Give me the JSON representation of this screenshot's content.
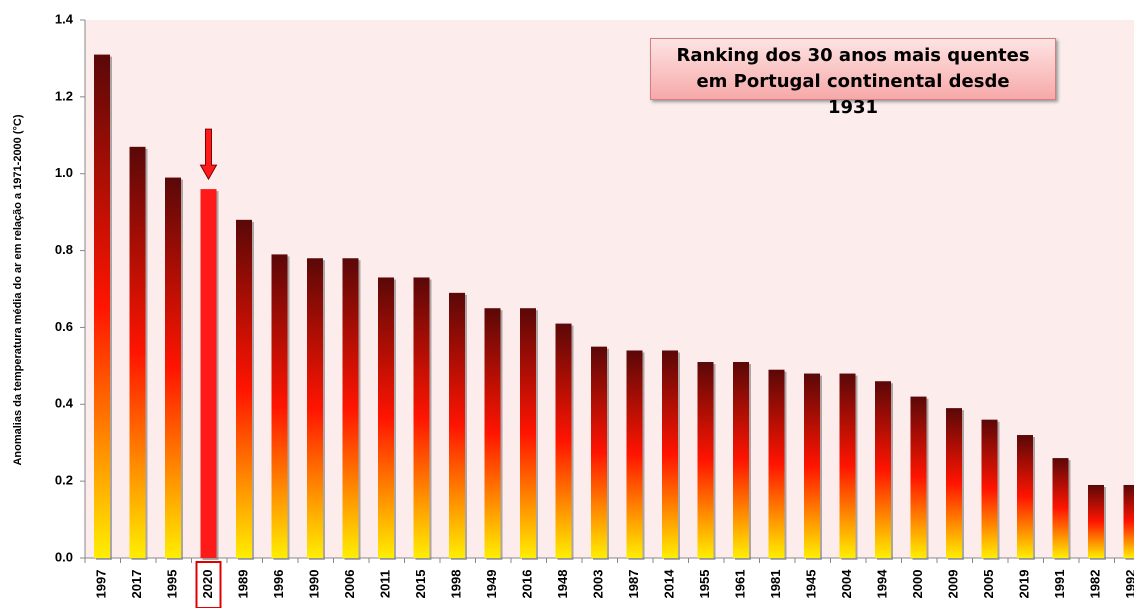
{
  "chart_data": {
    "type": "bar",
    "title": "Ranking dos 30 anos mais quentes em Portugal continental desde 1931",
    "y_label": "Anomalias da temperatura média do ar em relação a 1971-2000 (°C)",
    "categories": [
      "1997",
      "2017",
      "1995",
      "2020",
      "1989",
      "1996",
      "1990",
      "2006",
      "2011",
      "2015",
      "1998",
      "1949",
      "2016",
      "1948",
      "2003",
      "1987",
      "2014",
      "1955",
      "1961",
      "1981",
      "1945",
      "2004",
      "1994",
      "2000",
      "2009",
      "2005",
      "2019",
      "1991",
      "1982",
      "1992"
    ],
    "values": [
      1.31,
      1.07,
      0.99,
      0.96,
      0.88,
      0.79,
      0.78,
      0.78,
      0.73,
      0.73,
      0.69,
      0.65,
      0.65,
      0.61,
      0.55,
      0.54,
      0.54,
      0.51,
      0.51,
      0.49,
      0.48,
      0.48,
      0.46,
      0.42,
      0.39,
      0.36,
      0.32,
      0.26,
      0.19,
      0.19
    ],
    "colors": [
      "#5a0808",
      "#ff1400",
      "#ffee00"
    ],
    "highlight_category": "2020",
    "highlight_color": "#ff1a1a",
    "ylim": [
      0,
      1.4
    ],
    "yticks": [
      {
        "value": 0,
        "label": "0.0"
      },
      0.2,
      0.4,
      0.6,
      0.8,
      {
        "value": 1,
        "label": "1.0"
      },
      1.2,
      1.4
    ],
    "grid": false
  }
}
